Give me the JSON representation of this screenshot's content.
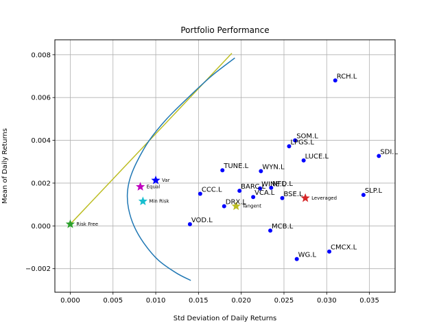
{
  "chart_data": {
    "type": "scatter",
    "title": "Portfolio Performance",
    "xlabel": "Std Deviation of Daily Returns",
    "ylabel": "Mean of Daily Returns",
    "xlim": [
      -0.0018,
      0.038
    ],
    "ylim": [
      -0.0031,
      0.0087
    ],
    "xticks": [
      0.0,
      0.005,
      0.01,
      0.015,
      0.02,
      0.025,
      0.03,
      0.035
    ],
    "xtick_labels": [
      "0.000",
      "0.005",
      "0.010",
      "0.015",
      "0.020",
      "0.025",
      "0.030",
      "0.035"
    ],
    "yticks": [
      -0.002,
      0.0,
      0.002,
      0.004,
      0.006,
      0.008
    ],
    "ytick_labels": [
      "−0.002",
      "0.000",
      "0.002",
      "0.004",
      "0.006",
      "0.008"
    ],
    "grid": true,
    "colors": {
      "stocks": "#0000ff",
      "frontier": "#1f77b4",
      "cml": "#bcbd22",
      "grid": "#b0b0b0"
    },
    "stocks": [
      {
        "name": "RCH.L",
        "x": 0.031,
        "y": 0.0068
      },
      {
        "name": "SDI.L",
        "x": 0.0361,
        "y": 0.00327
      },
      {
        "name": "SOM.L",
        "x": 0.0263,
        "y": 0.004
      },
      {
        "name": "LPGS.L",
        "x": 0.0256,
        "y": 0.00372
      },
      {
        "name": "LUCE.L",
        "x": 0.0273,
        "y": 0.00306
      },
      {
        "name": "TUNE.L",
        "x": 0.0178,
        "y": 0.0026
      },
      {
        "name": "WYN.L",
        "x": 0.0223,
        "y": 0.00256
      },
      {
        "name": "WINE.L",
        "x": 0.0222,
        "y": 0.00175
      },
      {
        "name": "NFD.L",
        "x": 0.0235,
        "y": 0.00178
      },
      {
        "name": "BARC.L",
        "x": 0.0198,
        "y": 0.00164
      },
      {
        "name": "CCC.L",
        "x": 0.0152,
        "y": 0.0015
      },
      {
        "name": "VCA.L",
        "x": 0.0214,
        "y": 0.00135
      },
      {
        "name": "BSE.L",
        "x": 0.0248,
        "y": 0.0013
      },
      {
        "name": "SLP.L",
        "x": 0.0343,
        "y": 0.00145
      },
      {
        "name": "DRX.L",
        "x": 0.018,
        "y": 0.00092
      },
      {
        "name": "VOD.L",
        "x": 0.014,
        "y": 8e-05
      },
      {
        "name": "MCB.L",
        "x": 0.0234,
        "y": -0.00022
      },
      {
        "name": "CMCX.L",
        "x": 0.0303,
        "y": -0.0012
      },
      {
        "name": "WG.L",
        "x": 0.0265,
        "y": -0.00155
      }
    ],
    "special_points": [
      {
        "name": "Risk Free",
        "x": 0.0,
        "y": 8e-05,
        "color": "#2ca02c"
      },
      {
        "name": "Var",
        "x": 0.01,
        "y": 0.00213,
        "color": "#0000ff"
      },
      {
        "name": "Equal",
        "x": 0.0082,
        "y": 0.00183,
        "color": "#bf00bf"
      },
      {
        "name": "Min Risk",
        "x": 0.0085,
        "y": 0.00115,
        "color": "#17becf"
      },
      {
        "name": "Tangent",
        "x": 0.0194,
        "y": 0.00092,
        "color": "#bcbd22"
      },
      {
        "name": "Leveraged",
        "x": 0.0275,
        "y": 0.0013,
        "color": "#d62728"
      }
    ],
    "efficient_frontier": {
      "x": [
        0.01925,
        0.0165,
        0.0138,
        0.01128,
        0.00925,
        0.0078,
        0.00698,
        0.00668,
        0.00682,
        0.00745,
        0.0086,
        0.0103,
        0.0124,
        0.0141
      ],
      "y": [
        0.00785,
        0.007,
        0.006,
        0.005,
        0.004,
        0.003,
        0.0022,
        0.0015,
        0.0008,
        0.0,
        -0.0008,
        -0.0016,
        -0.0022,
        -0.00255
      ]
    },
    "capital_market_line": {
      "x": [
        0.0,
        0.0189
      ],
      "y": [
        8e-05,
        0.00807
      ]
    }
  }
}
